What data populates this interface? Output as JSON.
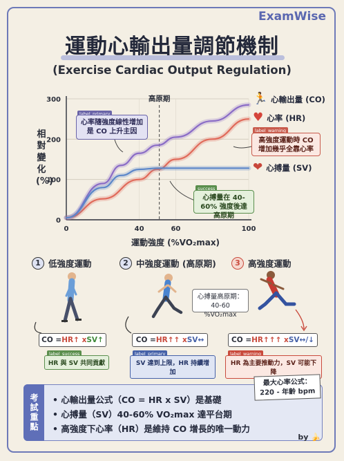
{
  "brand": "ExamWise",
  "title": "運動心輸出量調節機制",
  "subtitle": "(Exercise Cardiac Output Regulation)",
  "chart": {
    "ylabel": "相對變化(%)",
    "xlabel": "運動強度 (%VO₂max)",
    "plateau_label": "高原期",
    "y_ticks": [
      "0",
      "100",
      "200",
      "300"
    ],
    "x_ticks": [
      "0",
      "40",
      "60",
      "100"
    ]
  },
  "chart_data": {
    "type": "line",
    "xlabel": "運動強度 (%VO₂max)",
    "ylabel": "相對變化(%)",
    "xlim": [
      0,
      100
    ],
    "ylim": [
      0,
      300
    ],
    "grid": true,
    "series": [
      {
        "name": "心輸出量 (CO)",
        "color": "#8a6cc6",
        "x": [
          0,
          20,
          30,
          40,
          50,
          60,
          80,
          100
        ],
        "y": [
          5,
          90,
          135,
          165,
          185,
          205,
          245,
          285
        ]
      },
      {
        "name": "心率 (HR)",
        "color": "#e06a5a",
        "x": [
          0,
          20,
          40,
          50,
          60,
          80,
          100
        ],
        "y": [
          5,
          52,
          100,
          125,
          150,
          200,
          250
        ]
      },
      {
        "name": "心搏量 (SV)",
        "color": "#5b86c9",
        "x": [
          0,
          20,
          30,
          40,
          50,
          60,
          80,
          100
        ],
        "y": [
          5,
          80,
          110,
          125,
          128,
          128,
          128,
          128
        ]
      }
    ]
  },
  "legend": {
    "co": "心輸出量 (CO)",
    "hr": "心率 (HR)",
    "sv": "心搏量 (SV)"
  },
  "notes": {
    "primary_tag": "label_primary",
    "primary_text": "心率隨強度線性增加 是 CO 上升主因",
    "warning_tag": "label_warning",
    "warning_text": "高強度運動時 CO 增加幾乎全靠心率",
    "success_tag": "success",
    "success_text": "心搏量在 40-60% 強度後達高原期"
  },
  "stages": [
    {
      "num": "1",
      "title": "低強度運動",
      "formula_parts": [
        "CO = ",
        "HR",
        " ↑ x ",
        "SV",
        " ↑"
      ],
      "tag": "label_success",
      "caption": "HR 與 SV 共同貢獻",
      "color": "#3f8a3a"
    },
    {
      "num": "2",
      "title": "中強度運動 (高原期)",
      "formula_parts": [
        "CO = ",
        "HR",
        " ↑↑ x ",
        "SV",
        " ↔"
      ],
      "tag": "label_primary",
      "caption": "SV 達到上限，HR 持續增加",
      "color": "#4561a8"
    },
    {
      "num": "3",
      "title": "高強度運動",
      "formula_parts": [
        "CO = ",
        "HR",
        " ↑↑↑ x ",
        "SV",
        " ↔/↓"
      ],
      "tag": "label_warning",
      "caption": "HR 為主要推動力，SV 可能下降",
      "color": "#c94a3c"
    }
  ],
  "plateau_callout": "心搏量高原期： 40-60 %VO₂max",
  "keypoints": {
    "tab": "考試重點",
    "items": [
      "• 心輸出量公式（CO = HR x SV）是基礎",
      "• 心搏量（SV）40-60% VO₂max 達平台期",
      "• 高強度下心率（HR）是維持 CO 增長的唯一動力"
    ]
  },
  "max_hr": "最大心率公式： 220 - 年齡 bpm",
  "byline": "by"
}
